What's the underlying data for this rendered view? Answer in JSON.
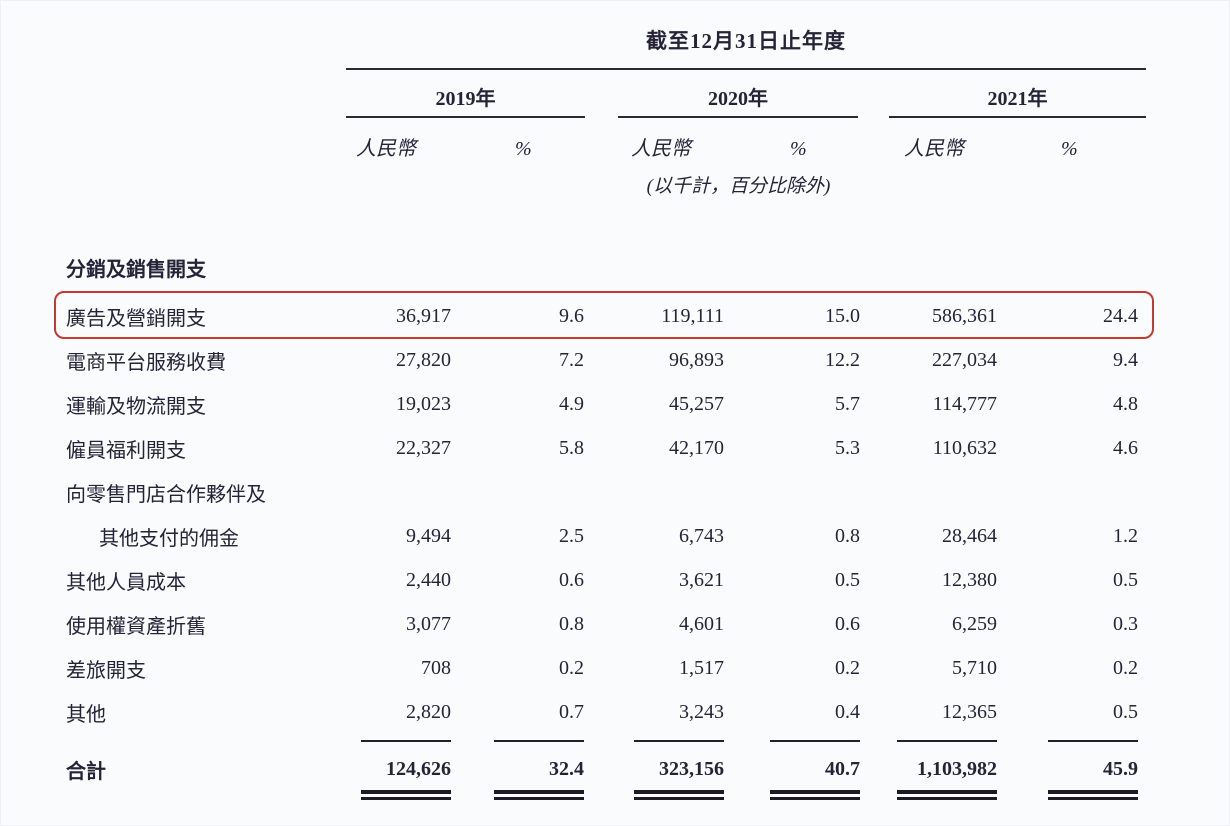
{
  "page": {
    "background": "#fafbfd",
    "ink_color": "#262338",
    "rule_color": "#2b2936",
    "highlight_box_color": "#c43a2e"
  },
  "table": {
    "title": "截至12月31日止年度",
    "year_groups": [
      {
        "label": "2019年"
      },
      {
        "label": "2020年"
      },
      {
        "label": "2021年"
      }
    ],
    "subheaders": {
      "currency": "人民幣",
      "percent": "%"
    },
    "unit_note": "(以千計，百分比除外)",
    "section_header": "分銷及銷售開支",
    "rows": [
      {
        "label": "廣告及營銷開支",
        "highlighted": true,
        "values": [
          "36,917",
          "9.6",
          "119,111",
          "15.0",
          "586,361",
          "24.4"
        ]
      },
      {
        "label": "電商平台服務收費",
        "values": [
          "27,820",
          "7.2",
          "96,893",
          "12.2",
          "227,034",
          "9.4"
        ]
      },
      {
        "label": "運輸及物流開支",
        "values": [
          "19,023",
          "4.9",
          "45,257",
          "5.7",
          "114,777",
          "4.8"
        ]
      },
      {
        "label": "僱員福利開支",
        "values": [
          "22,327",
          "5.8",
          "42,170",
          "5.3",
          "110,632",
          "4.6"
        ]
      },
      {
        "label": "向零售門店合作夥伴及",
        "values": [
          "",
          "",
          "",
          "",
          "",
          ""
        ]
      },
      {
        "label": "其他支付的佣金",
        "indent": true,
        "values": [
          "9,494",
          "2.5",
          "6,743",
          "0.8",
          "28,464",
          "1.2"
        ]
      },
      {
        "label": "其他人員成本",
        "values": [
          "2,440",
          "0.6",
          "3,621",
          "0.5",
          "12,380",
          "0.5"
        ]
      },
      {
        "label": "使用權資產折舊",
        "values": [
          "3,077",
          "0.8",
          "4,601",
          "0.6",
          "6,259",
          "0.3"
        ]
      },
      {
        "label": "差旅開支",
        "values": [
          "708",
          "0.2",
          "1,517",
          "0.2",
          "5,710",
          "0.2"
        ]
      },
      {
        "label": "其他",
        "values": [
          "2,820",
          "0.7",
          "3,243",
          "0.4",
          "12,365",
          "0.5"
        ]
      }
    ],
    "total": {
      "label": "合計",
      "values": [
        "124,626",
        "32.4",
        "323,156",
        "40.7",
        "1,103,982",
        "45.9"
      ]
    }
  }
}
